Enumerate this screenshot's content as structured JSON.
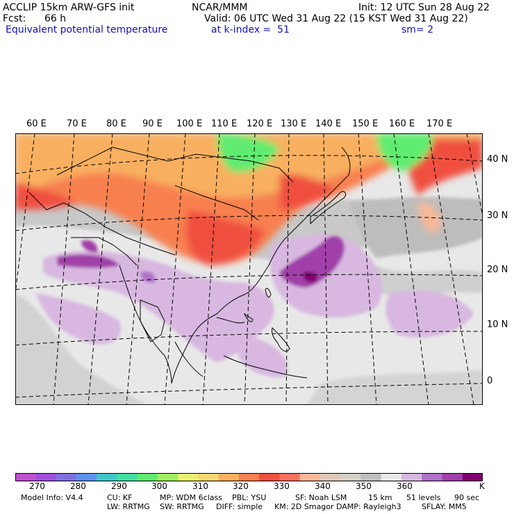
{
  "header": {
    "model": "ACCLIP 15km ARW-GFS init",
    "org": "NCAR/MMM",
    "init": "Init: 12 UTC Sun 28 Aug 22",
    "fcst_label": "Fcst:",
    "fcst_value": "66 h",
    "valid": "Valid: 06 UTC Wed 31 Aug 22 (15 KST Wed 31 Aug 22)",
    "field": "Equivalent potential temperature",
    "level": "at k-index =  51",
    "smooth": "sm= 2"
  },
  "map": {
    "lon_labels": [
      "60 E",
      "70 E",
      "80 E",
      "90 E",
      "100 E",
      "110 E",
      "120 E",
      "130 E",
      "140 E",
      "150 E",
      "160 E",
      "170 E"
    ],
    "lat_labels": [
      "40 N",
      "30 N",
      "20 N",
      "10 N",
      "0"
    ]
  },
  "colorbar": {
    "unit": "K",
    "colors": [
      "#c050d0",
      "#a050e0",
      "#8070e0",
      "#6090f0",
      "#40c8c8",
      "#40e0a0",
      "#60ec70",
      "#a0f060",
      "#e8f070",
      "#f8d870",
      "#f8b060",
      "#f88050",
      "#f05040",
      "#f87060",
      "#f8b898",
      "#e0c8b8",
      "#d8d0c8",
      "#c0c0c0",
      "#e8e8e8",
      "#d8b8e0",
      "#b070c8",
      "#a040a8",
      "#800070"
    ],
    "labels": [
      "270",
      "280",
      "290",
      "300",
      "310",
      "320",
      "330",
      "340",
      "350",
      "360"
    ]
  },
  "footer": {
    "model_info": "Model Info: V4.4",
    "cu": "CU: KF",
    "mp": "MP: WDM 6class",
    "pbl": "PBL: YSU",
    "sf": "SF: Noah LSM",
    "dx": "15 km",
    "levels": "51 levels",
    "dt": "90 sec",
    "lw": "LW: RRTMG",
    "sw": "SW: RRTMG",
    "diff": "DIFF: simple",
    "km": "KM: 2D Smagor",
    "damp": "DAMP: Rayleigh3",
    "sflay": "SFLAY: MM5"
  }
}
